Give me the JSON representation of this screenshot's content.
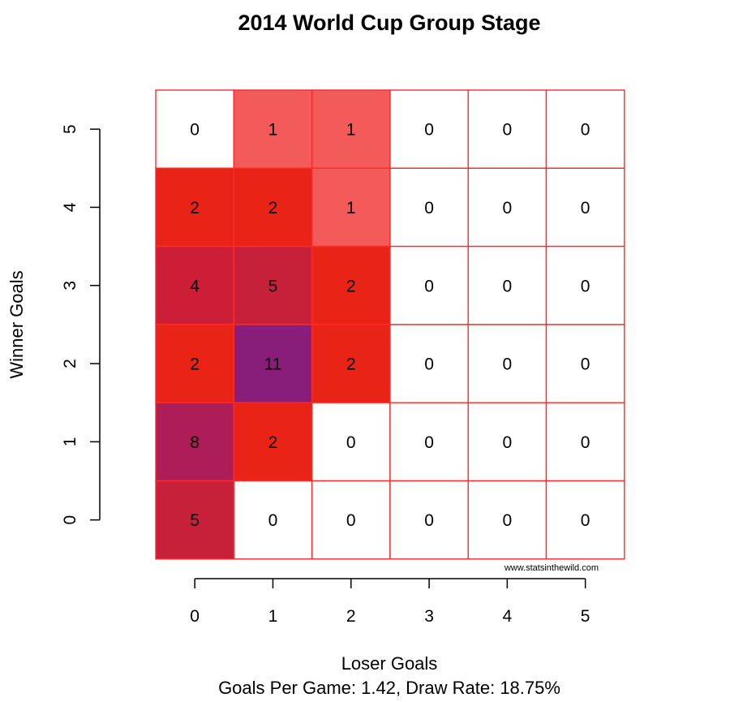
{
  "chart_data": {
    "type": "heatmap",
    "title": "2014 World Cup Group Stage",
    "xlabel": "Loser Goals",
    "ylabel": "Winner Goals",
    "subtitle": "Goals Per Game: 1.42, Draw Rate: 18.75%",
    "watermark": "www.statsinthewild.com",
    "x_categories": [
      "0",
      "1",
      "2",
      "3",
      "4",
      "5"
    ],
    "y_categories": [
      "0",
      "1",
      "2",
      "3",
      "4",
      "5"
    ],
    "cells": [
      {
        "winner": 5,
        "loser": 0,
        "count": 0
      },
      {
        "winner": 5,
        "loser": 1,
        "count": 1
      },
      {
        "winner": 5,
        "loser": 2,
        "count": 1
      },
      {
        "winner": 5,
        "loser": 3,
        "count": 0
      },
      {
        "winner": 5,
        "loser": 4,
        "count": 0
      },
      {
        "winner": 5,
        "loser": 5,
        "count": 0
      },
      {
        "winner": 4,
        "loser": 0,
        "count": 2
      },
      {
        "winner": 4,
        "loser": 1,
        "count": 2
      },
      {
        "winner": 4,
        "loser": 2,
        "count": 1
      },
      {
        "winner": 4,
        "loser": 3,
        "count": 0
      },
      {
        "winner": 4,
        "loser": 4,
        "count": 0
      },
      {
        "winner": 4,
        "loser": 5,
        "count": 0
      },
      {
        "winner": 3,
        "loser": 0,
        "count": 4
      },
      {
        "winner": 3,
        "loser": 1,
        "count": 5
      },
      {
        "winner": 3,
        "loser": 2,
        "count": 2
      },
      {
        "winner": 3,
        "loser": 3,
        "count": 0
      },
      {
        "winner": 3,
        "loser": 4,
        "count": 0
      },
      {
        "winner": 3,
        "loser": 5,
        "count": 0
      },
      {
        "winner": 2,
        "loser": 0,
        "count": 2
      },
      {
        "winner": 2,
        "loser": 1,
        "count": 11
      },
      {
        "winner": 2,
        "loser": 2,
        "count": 2
      },
      {
        "winner": 2,
        "loser": 3,
        "count": 0
      },
      {
        "winner": 2,
        "loser": 4,
        "count": 0
      },
      {
        "winner": 2,
        "loser": 5,
        "count": 0
      },
      {
        "winner": 1,
        "loser": 0,
        "count": 8
      },
      {
        "winner": 1,
        "loser": 1,
        "count": 2
      },
      {
        "winner": 1,
        "loser": 2,
        "count": 0
      },
      {
        "winner": 1,
        "loser": 3,
        "count": 0
      },
      {
        "winner": 1,
        "loser": 4,
        "count": 0
      },
      {
        "winner": 1,
        "loser": 5,
        "count": 0
      },
      {
        "winner": 0,
        "loser": 0,
        "count": 5
      },
      {
        "winner": 0,
        "loser": 1,
        "count": 0
      },
      {
        "winner": 0,
        "loser": 2,
        "count": 0
      },
      {
        "winner": 0,
        "loser": 3,
        "count": 0
      },
      {
        "winner": 0,
        "loser": 4,
        "count": 0
      },
      {
        "winner": 0,
        "loser": 5,
        "count": 0
      }
    ],
    "colors": {
      "0": "#ffffff",
      "1": "#f35a5a",
      "2": "#e92416",
      "4": "#cc1f37",
      "5": "#c7203b",
      "8": "#ad1e59",
      "11": "#891e7a"
    },
    "grid_color": "#ff2a2a",
    "axis_color": "#000000"
  }
}
